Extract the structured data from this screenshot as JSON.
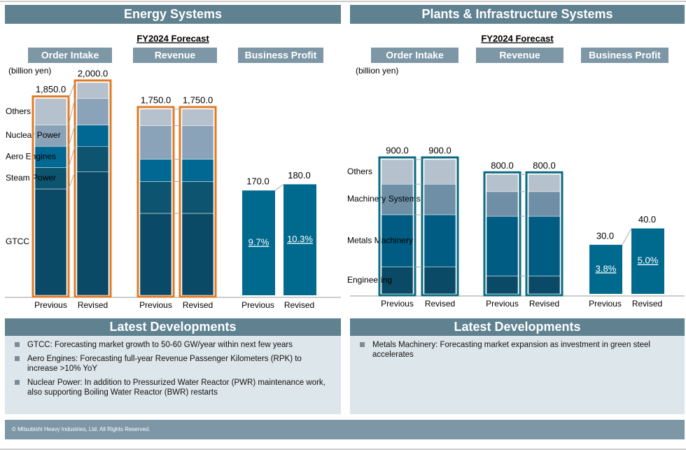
{
  "panels": [
    {
      "title": "Energy Systems",
      "subtitle": "FY2024 Forecast",
      "unit": "(billion yen)",
      "developments_title": "Latest Developments",
      "developments": [
        "GTCC: Forecasting market growth to 50-60 GW/year within next few years",
        "Aero Engines: Forecasting full-year Revenue Passenger Kilometers (RPK) to increase >10% YoY",
        "Nuclear Power: In addition to Pressurized Water Reactor (PWR) maintenance work, also supporting Boiling Water Reactor (BWR) restarts"
      ]
    },
    {
      "title": "Plants & Infrastructure Systems",
      "subtitle": "FY2024 Forecast",
      "unit": "(billion yen)",
      "developments_title": "Latest Developments",
      "developments": [
        "Metals Machinery: Forecasting market expansion as investment in green steel accelerates"
      ]
    }
  ],
  "chart_data": [
    {
      "type": "stacked_bar",
      "title": "Order Intake",
      "categories": [
        "Previous",
        "Revised"
      ],
      "outline_color": "#e07b26",
      "ylim": [
        0,
        2000
      ],
      "series": [
        {
          "name": "GTCC",
          "color": "#0b4a66",
          "values": [
            1000,
            1160
          ]
        },
        {
          "name": "Steam Power",
          "color": "#0d5470",
          "values": [
            200,
            240
          ]
        },
        {
          "name": "Aero Engines",
          "color": "#006892",
          "values": [
            200,
            200
          ]
        },
        {
          "name": "Nuclear Power",
          "color": "#8aa3b8",
          "values": [
            200,
            250
          ]
        },
        {
          "name": "Others",
          "color": "#b5c1cc",
          "values": [
            250,
            150
          ]
        }
      ],
      "totals": [
        1850,
        2000
      ],
      "total_labels": [
        "1,850.0",
        "2,000.0"
      ]
    },
    {
      "type": "stacked_bar",
      "title": "Revenue",
      "categories": [
        "Previous",
        "Revised"
      ],
      "outline_color": "#e07b26",
      "ylim": [
        0,
        2000
      ],
      "series": [
        {
          "color": "#0b4a66",
          "values": [
            770,
            770
          ]
        },
        {
          "color": "#0d5470",
          "values": [
            300,
            300
          ]
        },
        {
          "color": "#006892",
          "values": [
            210,
            210
          ]
        },
        {
          "color": "#8aa3b8",
          "values": [
            315,
            315
          ]
        },
        {
          "color": "#b5c1cc",
          "values": [
            155,
            155
          ]
        }
      ],
      "totals": [
        1750,
        1750
      ],
      "total_labels": [
        "1,750.0",
        "1,750.0"
      ]
    },
    {
      "type": "bar",
      "title": "Business Profit",
      "categories": [
        "Previous",
        "Revised"
      ],
      "color": "#006a8e",
      "ylim": [
        0,
        345
      ],
      "values": [
        170,
        180
      ],
      "value_labels": [
        "170.0",
        "180.0"
      ],
      "annotations": [
        "9.7%",
        "10.3%"
      ]
    },
    {
      "type": "stacked_bar",
      "title": "Order Intake",
      "categories": [
        "Previous",
        "Revised"
      ],
      "outline_color": "#0a6a80",
      "ylim": [
        0,
        1425
      ],
      "series": [
        {
          "name": "Engineering",
          "color": "#0b4a66",
          "values": [
            180,
            180
          ]
        },
        {
          "name": "Metals Machinery",
          "color": "#005c82",
          "values": [
            350,
            350
          ]
        },
        {
          "name": "Machinery Systems",
          "color": "#6e8fa6",
          "values": [
            205,
            205
          ]
        },
        {
          "name": "Others",
          "color": "#b5c1cc",
          "values": [
            165,
            165
          ]
        }
      ],
      "totals": [
        900,
        900
      ],
      "total_labels": [
        "900.0",
        "900.0"
      ]
    },
    {
      "type": "stacked_bar",
      "title": "Revenue",
      "categories": [
        "Previous",
        "Revised"
      ],
      "outline_color": "#0a6a80",
      "ylim": [
        0,
        1425
      ],
      "series": [
        {
          "color": "#0b4a66",
          "values": [
            120,
            120
          ]
        },
        {
          "color": "#005c82",
          "values": [
            400,
            400
          ]
        },
        {
          "color": "#6e8fa6",
          "values": [
            165,
            165
          ]
        },
        {
          "color": "#b5c1cc",
          "values": [
            115,
            115
          ]
        }
      ],
      "totals": [
        800,
        800
      ],
      "total_labels": [
        "800.0",
        "800.0"
      ]
    },
    {
      "type": "bar",
      "title": "Business Profit",
      "categories": [
        "Previous",
        "Revised"
      ],
      "color": "#006a8e",
      "ylim": [
        0,
        130
      ],
      "values": [
        30,
        40
      ],
      "value_labels": [
        "30.0",
        "40.0"
      ],
      "annotations": [
        "3.8%",
        "5.0%"
      ]
    }
  ],
  "footer": "© Mitsubishi Heavy Industries, Ltd.  All Rights Reserved."
}
